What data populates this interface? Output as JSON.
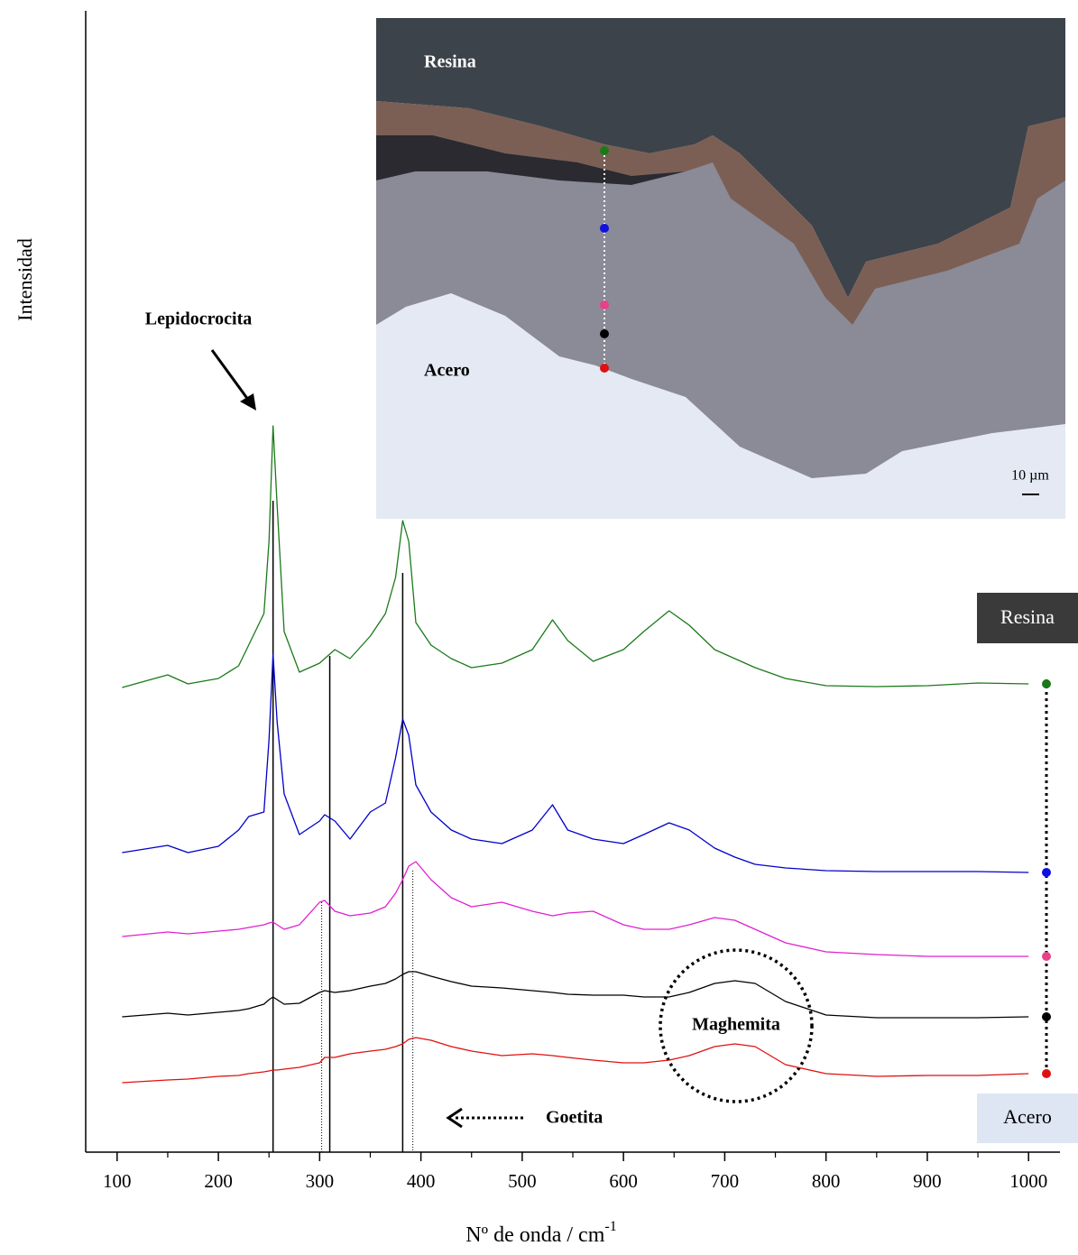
{
  "chart_data": {
    "type": "line",
    "ylabel": "Intensidad",
    "xlabel": {
      "text": "Nº de onda / cm",
      "sup": "-1"
    },
    "xlim": [
      69,
      1031
    ],
    "ylim": [
      0,
      1265
    ],
    "xticks": [
      100,
      200,
      300,
      400,
      500,
      600,
      700,
      800,
      900,
      1000
    ],
    "xminor_ticks": [
      150,
      250,
      350,
      450,
      550,
      650,
      750,
      850,
      950
    ],
    "x": [
      105,
      150,
      170,
      200,
      220,
      230,
      245,
      250,
      254,
      258,
      265,
      280,
      300,
      305,
      315,
      330,
      350,
      365,
      375,
      382,
      388,
      395,
      410,
      430,
      450,
      480,
      510,
      530,
      545,
      570,
      600,
      620,
      645,
      665,
      690,
      710,
      730,
      760,
      800,
      850,
      900,
      950,
      1000
    ],
    "series": [
      {
        "color": "#1a7a1a",
        "marker_color": "#1a7a1a",
        "values": [
          515,
          529,
          519,
          525,
          539,
          562,
          597,
          677,
          805,
          717,
          577,
          532,
          542,
          547,
          557,
          547,
          572,
          597,
          637,
          700,
          677,
          587,
          562,
          547,
          537,
          542,
          557,
          590,
          567,
          544,
          557,
          577,
          600,
          584,
          557,
          547,
          537,
          525,
          517,
          516,
          517,
          520,
          519
        ]
      },
      {
        "color": "#0000cc",
        "marker_color": "#1010e0",
        "values": [
          332,
          340,
          332,
          339,
          357,
          372,
          377,
          457,
          552,
          477,
          397,
          352,
          367,
          374,
          367,
          347,
          377,
          387,
          437,
          480,
          462,
          407,
          377,
          357,
          347,
          342,
          357,
          385,
          357,
          347,
          342,
          352,
          365,
          357,
          337,
          327,
          319,
          315,
          312,
          311,
          311,
          311,
          310
        ]
      },
      {
        "color": "#e020d0",
        "marker_color": "#e8408a",
        "values": [
          239,
          244,
          242,
          245,
          247,
          249,
          252,
          254,
          255,
          252,
          247,
          252,
          277,
          279,
          267,
          262,
          265,
          272,
          287,
          302,
          317,
          322,
          302,
          282,
          272,
          277,
          267,
          262,
          265,
          267,
          252,
          247,
          247,
          252,
          260,
          257,
          247,
          232,
          222,
          219,
          217,
          217,
          217
        ]
      },
      {
        "color": "#000000",
        "marker_color": "#000000",
        "values": [
          150,
          154,
          152,
          155,
          157,
          159,
          164,
          169,
          172,
          169,
          164,
          165,
          177,
          179,
          177,
          179,
          184,
          187,
          192,
          197,
          200,
          200,
          195,
          189,
          184,
          182,
          179,
          177,
          175,
          174,
          174,
          172,
          172,
          177,
          187,
          190,
          187,
          167,
          152,
          149,
          149,
          149,
          150
        ]
      },
      {
        "color": "#e01010",
        "marker_color": "#e01010",
        "values": [
          77,
          80,
          81,
          84,
          85,
          87,
          89,
          90,
          91,
          91,
          92,
          94,
          99,
          105,
          105,
          109,
          112,
          114,
          117,
          120,
          125,
          127,
          124,
          117,
          112,
          107,
          109,
          107,
          105,
          102,
          99,
          99,
          102,
          107,
          117,
          120,
          117,
          97,
          87,
          84,
          85,
          85,
          87
        ]
      }
    ],
    "reference_lines": [
      {
        "x": 254,
        "top": 722,
        "style": "solid"
      },
      {
        "x": 310,
        "top": 550,
        "style": "solid"
      },
      {
        "x": 382,
        "top": 642,
        "style": "solid"
      },
      {
        "x": 302,
        "top": 277,
        "style": "dotted"
      },
      {
        "x": 392,
        "top": 312,
        "style": "dotted"
      }
    ],
    "annotations": {
      "lepidocrocita": "Lepidocrocita",
      "goetita": "Goetita",
      "maghemita": "Maghemita"
    },
    "side_labels": {
      "top": "Resina",
      "bottom": "Acero"
    },
    "inset": {
      "top_label": "Resina",
      "bottom_label": "Acero",
      "scale_label": "10 µm"
    }
  }
}
